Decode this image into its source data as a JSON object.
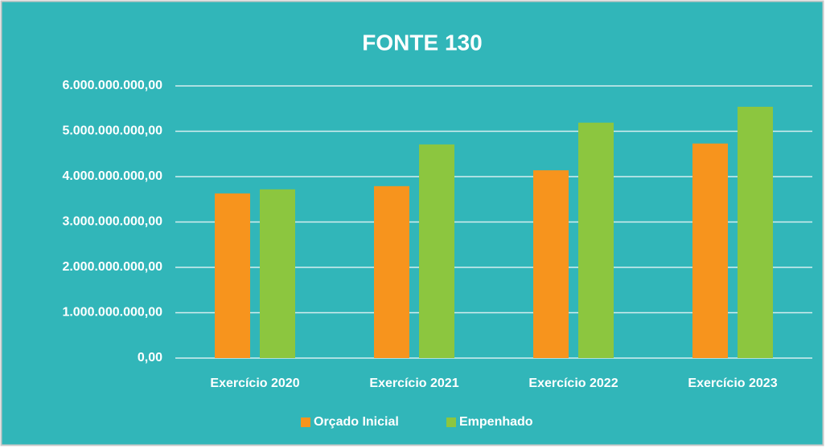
{
  "chart_data": {
    "type": "bar",
    "title": "FONTE 130",
    "categories": [
      "Exercício 2020",
      "Exercício 2021",
      "Exercício 2022",
      "Exercício 2023"
    ],
    "series": [
      {
        "name": "Orçado Inicial",
        "color": "#f7941d",
        "values": [
          3630000000,
          3790000000,
          4140000000,
          4730000000
        ]
      },
      {
        "name": "Empenhado",
        "color": "#8cc63f",
        "values": [
          3720000000,
          4710000000,
          5190000000,
          5540000000
        ]
      }
    ],
    "ylim": [
      0,
      6000000000
    ],
    "yticks": [
      {
        "value": 0,
        "label": "0,00"
      },
      {
        "value": 1000000000,
        "label": "1.000.000.000,00"
      },
      {
        "value": 2000000000,
        "label": "2.000.000.000,00"
      },
      {
        "value": 3000000000,
        "label": "3.000.000.000,00"
      },
      {
        "value": 4000000000,
        "label": "4.000.000.000,00"
      },
      {
        "value": 5000000000,
        "label": "5.000.000.000,00"
      },
      {
        "value": 6000000000,
        "label": "6.000.000.000,00"
      }
    ],
    "grid": true,
    "legend": "bottom"
  }
}
